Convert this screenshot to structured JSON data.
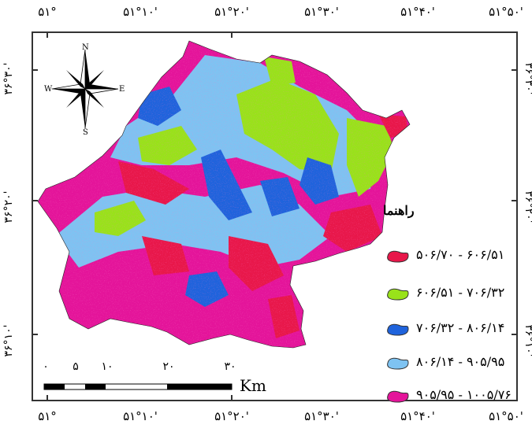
{
  "map": {
    "coords_top": [
      "۵۱°",
      "۵۱°۱۰'",
      "۵۱°۲۰'",
      "۵۱°۳۰'",
      "۵۱°۴۰'",
      "۵۱°۵۰'"
    ],
    "coords_bottom": [
      "۵۱°",
      "۵۱°۱۰'",
      "۵۱°۲۰'",
      "۵۱°۳۰'",
      "۵۱°۴۰'",
      "۵۱°۵۰'"
    ],
    "coords_left": [
      "۳۶°۳۰'",
      "۳۶°۲۰'",
      "۳۶°۱۰'"
    ],
    "coords_right": [
      "۳۶°۳۰'",
      "۳۶°۲۰'",
      "۳۶°۱۰'"
    ],
    "compass": {
      "north": "N",
      "south": "S",
      "east": "E",
      "west": "W"
    }
  },
  "legend": {
    "title": "راهنما",
    "items": [
      {
        "label": "۵۰۶/۷۰ - ۶۰۶/۵۱",
        "color": "#e8174a"
      },
      {
        "label": "۶۰۶/۵۱ - ۷۰۶/۳۲",
        "color": "#99e21a"
      },
      {
        "label": "۷۰۶/۳۲ - ۸۰۶/۱۴",
        "color": "#1f63dc"
      },
      {
        "label": "۸۰۶/۱۴ - ۹۰۵/۹۵",
        "color": "#7ec3f2"
      },
      {
        "label": "۹۰۵/۹۵ - ۱۰۰۵/۷۶",
        "color": "#e4149a"
      }
    ]
  },
  "scale_bar": {
    "ticks": [
      "۰",
      "۵",
      "۱۰",
      "۲۰",
      "۳۰"
    ],
    "unit": "Km"
  }
}
